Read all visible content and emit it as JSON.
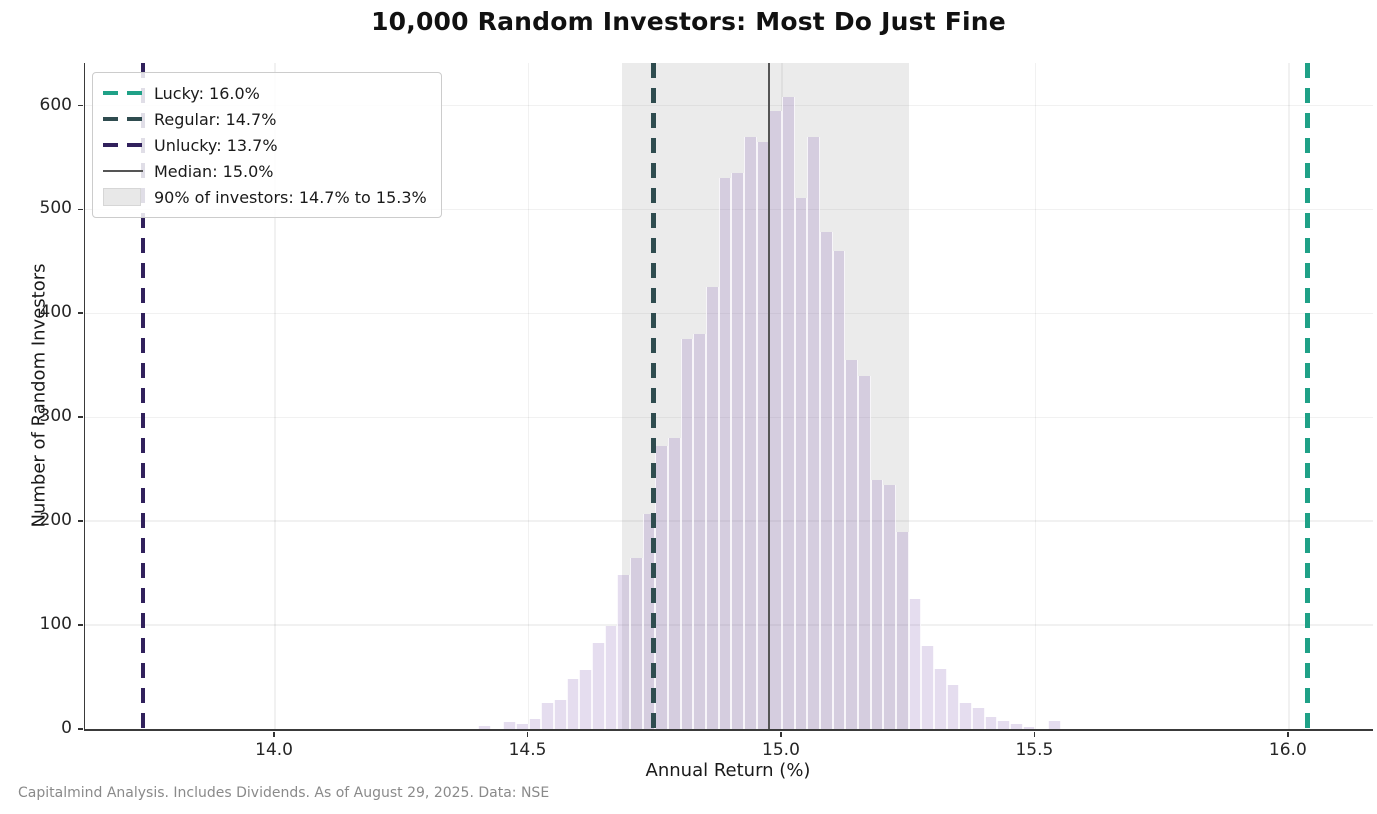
{
  "footer": "Capitalmind Analysis. Includes Dividends. As of August 29, 2025. Data: NSE",
  "chart_data": {
    "type": "bar",
    "subtype": "histogram",
    "title": "10,000 Random Investors: Most Do Just Fine",
    "xlabel": "Annual Return (%)",
    "ylabel": "Number of Random Investors",
    "xlim": [
      13.625,
      16.166
    ],
    "ylim": [
      0,
      641
    ],
    "grid": true,
    "x_ticks": [
      14.0,
      14.5,
      15.0,
      15.5,
      16.0
    ],
    "x_tick_labels": [
      "14.0",
      "14.5",
      "15.0",
      "15.5",
      "16.0"
    ],
    "y_ticks": [
      0,
      100,
      200,
      300,
      400,
      500,
      600
    ],
    "y_tick_labels": [
      "0",
      "100",
      "200",
      "300",
      "400",
      "500",
      "600"
    ],
    "histogram": {
      "bin_start": 14.4,
      "bin_width": 0.025,
      "counts": [
        3,
        0,
        7,
        5,
        10,
        25,
        28,
        48,
        57,
        83,
        99,
        148,
        165,
        207,
        272,
        280,
        375,
        380,
        425,
        530,
        535,
        570,
        565,
        595,
        608,
        511,
        570,
        478,
        460,
        355,
        340,
        240,
        235,
        190,
        125,
        80,
        58,
        42,
        25,
        20,
        12,
        8,
        5,
        2,
        0,
        8
      ],
      "fill": "rgba(138,99,183,0.22)",
      "edge": "rgba(255,255,255,0.8)"
    },
    "vlines": [
      {
        "id": "unlucky",
        "label": "Unlucky: 13.7%",
        "value_pct": 13.7,
        "x": 13.739,
        "color": "#31215C",
        "style": "dashed",
        "width": 4.5
      },
      {
        "id": "regular",
        "label": "Regular: 14.7%",
        "value_pct": 14.7,
        "x": 14.747,
        "color": "#2F4C4F",
        "style": "dashed",
        "width": 4.5
      },
      {
        "id": "median",
        "label": "Median: 15.0%",
        "value_pct": 15.0,
        "x": 14.974,
        "color": "#555555",
        "style": "solid",
        "width": 2.5
      },
      {
        "id": "lucky",
        "label": "Lucky: 16.0%",
        "value_pct": 16.0,
        "x": 16.037,
        "color": "#1FA187",
        "style": "dashed",
        "width": 4.5
      }
    ],
    "band": {
      "id": "band-90pct",
      "label": "90% of investors: 14.7% to 15.3%",
      "from": 14.684,
      "to": 15.25,
      "fill": "rgba(128,128,128,0.16)",
      "swatch_fill": "#E8E8E8",
      "swatch_edge": "#d6d6d6"
    },
    "legend_position": "upper-left",
    "legend_items": [
      {
        "id": "lucky",
        "swatch": "dash",
        "color": "#1FA187",
        "label": "Lucky: 16.0%"
      },
      {
        "id": "regular",
        "swatch": "dash",
        "color": "#2F4C4F",
        "label": "Regular: 14.7%"
      },
      {
        "id": "unlucky",
        "swatch": "dash",
        "color": "#31215C",
        "label": "Unlucky: 13.7%"
      },
      {
        "id": "median",
        "swatch": "solid",
        "color": "#555555",
        "label": "Median: 15.0%"
      },
      {
        "id": "band",
        "swatch": "patch",
        "color": "#E8E8E8",
        "label": "90% of investors: 14.7% to 15.3%"
      }
    ]
  }
}
